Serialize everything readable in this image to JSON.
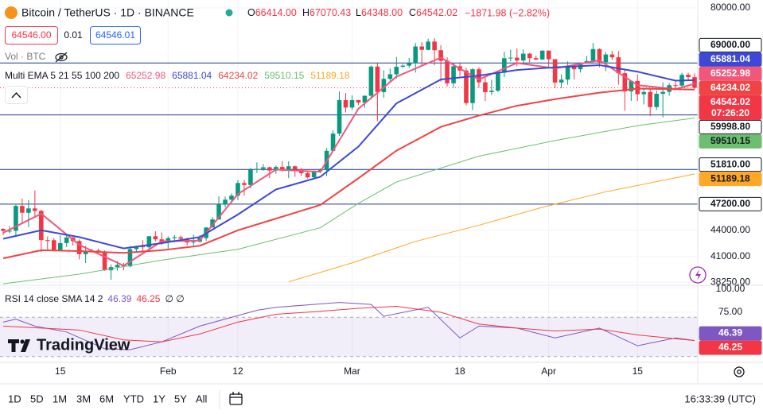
{
  "header": {
    "symbol": "Bitcoin / TetherUS · 1D · BINANCE",
    "ohlc": [
      {
        "key": "O",
        "value": "66414.00"
      },
      {
        "key": "H",
        "value": "67070.43"
      },
      {
        "key": "L",
        "value": "64348.00"
      },
      {
        "key": "C",
        "value": "64542.02"
      }
    ],
    "change": "−1871.98 (−2.82%)",
    "bid": "64546.00",
    "spread": "0.01",
    "ask": "64546.01",
    "volume": "Vol · BTC",
    "indicator": "Multi EMA 5 21 55 100 200"
  },
  "chart_data": [
    {
      "type": "candlestick",
      "log": true,
      "xlim": [
        -0.5,
        109.5
      ],
      "xticks": [
        {
          "value": 9,
          "label": "15"
        },
        {
          "value": 26,
          "label": "Feb"
        },
        {
          "value": 37,
          "label": "12"
        },
        {
          "value": 55,
          "label": "Mar"
        },
        {
          "value": 72,
          "label": "18"
        },
        {
          "value": 86,
          "label": "Apr"
        },
        {
          "value": 100,
          "label": "15"
        }
      ],
      "ylim": [
        38030,
        81730
      ],
      "yticks": [
        {
          "value": 80000,
          "label": "80000.00"
        },
        {
          "value": 44000,
          "label": "44000.00"
        },
        {
          "value": 41000,
          "label": "41000.00"
        },
        {
          "value": 38250,
          "label": "38250.00"
        }
      ],
      "up_color": "#089981",
      "down_color": "#f23645",
      "open": [
        44160,
        43930,
        43940,
        46970,
        46120,
        46660,
        46350,
        42850,
        42840,
        41730,
        42510,
        43150,
        42740,
        41260,
        41620,
        41670,
        41550,
        39510,
        39850,
        40080,
        39930,
        41820,
        42120,
        42030,
        43300,
        42940,
        42580,
        43080,
        43190,
        43010,
        42580,
        42660,
        43080,
        44320,
        45300,
        47140,
        47770,
        48290,
        49960,
        49700,
        51790,
        51900,
        52120,
        51660,
        52160,
        51660,
        52260,
        51840,
        51300,
        50730,
        51570,
        51730,
        54480,
        57060,
        62430,
        61200,
        62440,
        62030,
        63170,
        68330,
        63800,
        66110,
        66930,
        68300,
        68500,
        68960,
        72120,
        71480,
        73080,
        71400,
        69400,
        65320,
        68390,
        67610,
        61940,
        67840,
        65500,
        63800,
        64040,
        67210,
        69880,
        69990,
        69460,
        70740,
        69900,
        69640,
        71330,
        69700,
        65460,
        65980,
        68510,
        67840,
        68900,
        69360,
        71620,
        69140,
        70590,
        70060,
        67120,
        63920,
        65740,
        63430,
        63810,
        61280,
        63510,
        63840,
        64990,
        64930,
        66840,
        66414
      ],
      "high": [
        44230,
        44500,
        47220,
        47890,
        47700,
        48970,
        46500,
        43260,
        43080,
        43400,
        43580,
        43200,
        42930,
        42180,
        41870,
        41880,
        41680,
        40140,
        40520,
        40290,
        42200,
        42200,
        42840,
        43310,
        43880,
        43740,
        43290,
        43420,
        43380,
        43120,
        43500,
        43420,
        44370,
        45600,
        48200,
        48170,
        48590,
        50360,
        50370,
        52040,
        52820,
        52580,
        52210,
        52360,
        52990,
        52990,
        52380,
        52030,
        51550,
        51690,
        51960,
        54890,
        57560,
        63910,
        63650,
        63230,
        62480,
        63240,
        68500,
        69000,
        67640,
        67990,
        70100,
        68800,
        69940,
        72800,
        72970,
        73650,
        73750,
        72380,
        70040,
        68910,
        68920,
        68080,
        68060,
        68220,
        66650,
        65960,
        67590,
        71150,
        71500,
        71730,
        71550,
        70900,
        70330,
        71370,
        71340,
        69710,
        66900,
        69290,
        68720,
        69010,
        70330,
        72800,
        71760,
        71070,
        71260,
        71220,
        67930,
        65820,
        66890,
        64360,
        64490,
        64120,
        65500,
        65400,
        65690,
        67200,
        67220,
        67070.43
      ],
      "low": [
        43420,
        43600,
        43200,
        44800,
        44350,
        45650,
        41500,
        41720,
        41720,
        41720,
        42050,
        42200,
        40680,
        40280,
        41500,
        41500,
        39450,
        38520,
        39480,
        39500,
        39820,
        41390,
        41620,
        41800,
        42690,
        42280,
        41880,
        42570,
        42880,
        42220,
        42260,
        42580,
        42780,
        44330,
        45240,
        46800,
        47540,
        47710,
        48300,
        49250,
        51330,
        51610,
        50620,
        51200,
        51520,
        50630,
        50800,
        50920,
        50560,
        50590,
        51290,
        50900,
        54420,
        56710,
        60400,
        60820,
        61630,
        61160,
        62830,
        59000,
        62850,
        65560,
        66180,
        68100,
        68090,
        67230,
        68620,
        71360,
        68580,
        65620,
        64780,
        64560,
        66600,
        61560,
        60800,
        64540,
        62290,
        63290,
        63800,
        66400,
        69300,
        68380,
        68900,
        69100,
        69550,
        69600,
        68140,
        64500,
        64490,
        65060,
        66010,
        67250,
        68830,
        69300,
        68220,
        67520,
        69570,
        65100,
        60660,
        62310,
        62300,
        61710,
        59800,
        60800,
        59600,
        63180,
        64300,
        64500,
        65850,
        64348
      ],
      "close": [
        43930,
        43940,
        46970,
        46120,
        46660,
        46350,
        42850,
        42840,
        41730,
        42510,
        43150,
        42740,
        41260,
        41620,
        41670,
        41550,
        39510,
        39850,
        40080,
        39930,
        41820,
        42120,
        42030,
        43300,
        42940,
        42580,
        43080,
        43190,
        43010,
        42580,
        42660,
        43080,
        44320,
        45300,
        47140,
        47770,
        48290,
        49960,
        49700,
        51790,
        51900,
        52120,
        51660,
        52160,
        51660,
        52260,
        51840,
        51300,
        50730,
        51570,
        51730,
        54480,
        57060,
        62430,
        61200,
        62440,
        62030,
        63170,
        68330,
        63800,
        66110,
        66930,
        68300,
        68500,
        68960,
        72120,
        71480,
        73080,
        71400,
        69400,
        65320,
        68390,
        67610,
        61940,
        67840,
        65500,
        63800,
        64040,
        67210,
        69880,
        69990,
        69460,
        70740,
        69900,
        69640,
        71330,
        69700,
        65460,
        65980,
        68510,
        67840,
        68900,
        69360,
        71620,
        69140,
        70590,
        70060,
        67120,
        63920,
        65740,
        63430,
        63810,
        61280,
        63510,
        63840,
        64990,
        64930,
        66840,
        66414,
        64542.02
      ],
      "countdown": "07:26:20",
      "series": [
        {
          "color": "#f0577a",
          "x": [
            0,
            6,
            12,
            19,
            25,
            31,
            37,
            43,
            50,
            56,
            62,
            69,
            75,
            81,
            87,
            94,
            100,
            106,
            109
          ],
          "values": [
            43700,
            46000,
            42300,
            40000,
            42700,
            42800,
            48500,
            51800,
            51500,
            61000,
            66500,
            70000,
            66000,
            69000,
            68000,
            69500,
            65000,
            64300,
            65252.98
          ]
        },
        {
          "color": "#3d48d6",
          "x": [
            0,
            6,
            12,
            19,
            25,
            31,
            37,
            43,
            50,
            56,
            62,
            69,
            75,
            81,
            87,
            94,
            100,
            106,
            109
          ],
          "values": [
            43000,
            44000,
            43200,
            41900,
            42500,
            43200,
            45900,
            49100,
            50800,
            55100,
            61900,
            66000,
            66700,
            67700,
            68200,
            68600,
            67400,
            65800,
            65881.04
          ]
        },
        {
          "color": "#ef4444",
          "x": [
            0,
            6,
            12,
            19,
            25,
            31,
            37,
            43,
            50,
            56,
            62,
            69,
            75,
            81,
            87,
            94,
            100,
            106,
            109
          ],
          "values": [
            40800,
            41700,
            41600,
            41400,
            41700,
            42200,
            44000,
            45400,
            47100,
            50600,
            54500,
            58100,
            59900,
            61500,
            62600,
            63700,
            64400,
            64300,
            64234.02
          ]
        },
        {
          "color": "#6cbf6f",
          "x": [
            0,
            12,
            25,
            37,
            50,
            56,
            62,
            75,
            87,
            100,
            109
          ],
          "values": [
            38100,
            39100,
            40600,
            41800,
            44300,
            47300,
            50100,
            53700,
            56000,
            58300,
            59510.15
          ]
        },
        {
          "color": "#ffa726",
          "x": [
            45,
            55,
            65,
            75,
            85,
            95,
            109
          ],
          "values": [
            38300,
            40300,
            42700,
            44600,
            46800,
            48800,
            51189.18
          ]
        }
      ],
      "hline_color": "#1e3a8a",
      "hlines": [
        {
          "value": 69000,
          "label": "69000.00"
        },
        {
          "value": 59998.8,
          "label": "59998.80"
        },
        {
          "value": 51810,
          "label": "51810.00"
        },
        {
          "value": 47200,
          "label": "47200.00"
        }
      ]
    },
    {
      "type": "line",
      "title": "RSI 14 close SMA 14 2",
      "extra": "∅ ∅",
      "xlim": [
        -0.5,
        109.5
      ],
      "ylim": [
        25,
        100
      ],
      "yticks": [
        {
          "value": 75,
          "label": "75.00"
        },
        {
          "value": 100,
          "label": "100.00"
        }
      ],
      "band": [
        30,
        70
      ],
      "band_color": "#7e57c2",
      "series": [
        {
          "color": "#7e57c2",
          "x": [
            0,
            2,
            5,
            10,
            16,
            20,
            25,
            31,
            40,
            43,
            53,
            58,
            60,
            67,
            72,
            75,
            81,
            87,
            94,
            100,
            106,
            109
          ],
          "values": [
            65,
            68,
            61,
            55,
            38,
            37,
            45,
            61,
            77,
            80,
            85,
            83,
            71,
            80,
            49,
            61,
            59,
            49,
            59,
            41,
            49,
            46.39
          ]
        },
        {
          "color": "#f23645",
          "x": [
            0,
            12,
            19,
            25,
            31,
            37,
            43,
            50,
            56,
            62,
            69,
            75,
            81,
            87,
            94,
            100,
            109
          ],
          "values": [
            61,
            57,
            47,
            45,
            53,
            65,
            73,
            76,
            79,
            81,
            75,
            63,
            59,
            56,
            58,
            52,
            46.25
          ]
        }
      ]
    }
  ],
  "logo": "TradingView",
  "toolbar": {
    "ranges": [
      "1D",
      "5D",
      "1M",
      "3M",
      "6M",
      "YTD",
      "1Y",
      "5Y",
      "All"
    ],
    "clock": "16:33:39 (UTC)"
  }
}
